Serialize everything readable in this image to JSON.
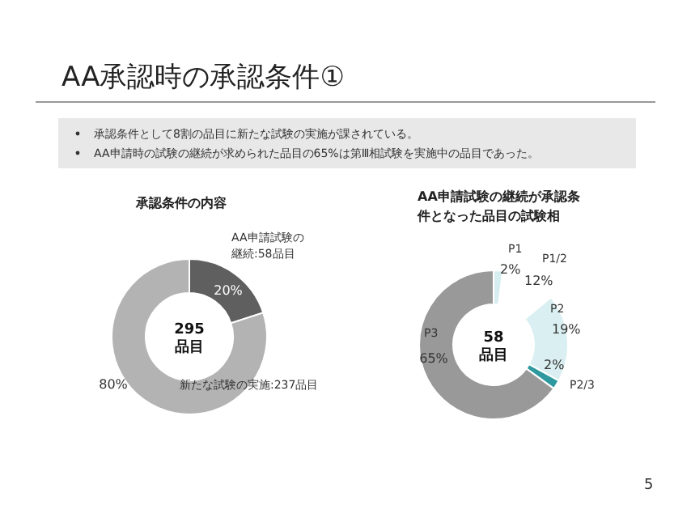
{
  "chart_data": [
    {
      "type": "other",
      "title": "AA承認時の承認条件①",
      "annotations": [
        "承認条件として8割の品目に新たな試験の実施が課されている。",
        "AA申請時の試験の継続が求められた品目の65%は第Ⅲ相試験を実施中の品目であった。",
        "5"
      ]
    },
    {
      "type": "donut",
      "title": "承認条件の内容",
      "categories": [
        "AA申請試験の継続:58品目",
        "新たな試験の実施:237品目"
      ],
      "values": [
        20,
        80
      ],
      "colors": [
        "#5f5f5f",
        "#b3b3b3"
      ],
      "value_labels": [
        "20%",
        "80%"
      ],
      "annotations": [
        "295品目"
      ]
    },
    {
      "type": "donut",
      "title": "AA申請試験の継続が承認条件となった品目の試験相",
      "categories": [
        "P1",
        "P1/2",
        "P2",
        "P2/3",
        "P3"
      ],
      "values": [
        2,
        12,
        19,
        2,
        65
      ],
      "colors": [
        "#d6eef0",
        "#ffffff",
        "#daeff1",
        "#2e9aa0",
        "#999999"
      ],
      "value_labels": [
        "2%",
        "12%",
        "19%",
        "2%",
        "65%"
      ],
      "annotations": [
        "58品目"
      ]
    }
  ]
}
